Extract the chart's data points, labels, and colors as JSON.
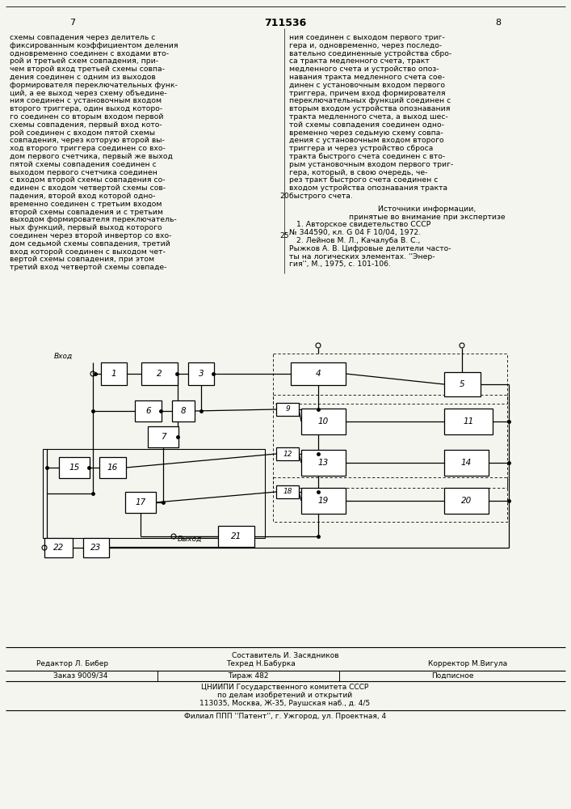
{
  "title_number": "711536",
  "page_left": "7",
  "page_right": "8",
  "background_color": "#f5f5f0",
  "text_color": "#000000",
  "left_column_text": [
    "схемы совпадения через делитель с",
    "фиксированным коэффициентом деления",
    "одновременно соединен с входами вто-",
    "рой и третьей схем совпадения, при-",
    "чем второй вход третьей схемы совпа-",
    "дения соединен с одним из выходов",
    "формирователя переключательных функ-",
    "ций, а ее выход через схему объедине-",
    "ния соединен с установочным входом",
    "второго триггера, один выход которо-",
    "го соединен со вторым входом первой",
    "схемы совпадения, первый вход кото-",
    "рой соединен с входом пятой схемы",
    "совпадения, через которую второй вы-",
    "ход второго триггера соединен со вхо-",
    "дом первого счетчика, первый же выход",
    "пятой схемы совпадения соединен с",
    "выходом первого счетчика соединен",
    "с входом второй схемы совпадения со-",
    "единен с входом четвертой схемы сов-",
    "падения, второй вход которой одно-",
    "временно соединен с третьим входом",
    "второй схемы совпадения и с третьим",
    "выходом формирователя переключатель-",
    "ных функций, первый выход которого",
    "соединен через второй инвертор со вхо-",
    "дом седьмой схемы совпадения, третий",
    "вход которой соединен с выходом чет-",
    "вертой схемы совпадения, при этом",
    "третий вход четвертой схемы совпаде-"
  ],
  "right_column_text": [
    "ния соединен с выходом первого триг-",
    "гера и, одновременно, через последо-",
    "вательно соединенные устройства сбро-",
    "са тракта медленного счета, тракт",
    "медленного счета и устройство опоз-",
    "навания тракта медленного счета сое-",
    "динен с установочным входом первого",
    "триггера, причем вход формирователя",
    "переключательных функций соединен с",
    "вторым входом устройства опознавания",
    "тракта медленного счета, а выход шес-",
    "той схемы совпадения соединен одно-",
    "временно через седьмую схему совпа-",
    "дения с установочным входом второго",
    "триггера и через устройство сброса",
    "тракта быстрого счета соединен с вто-",
    "рым установочным входом первого триг-",
    "гера, который, в свою очередь, че-",
    "рез тракт быстрого счета соединен с",
    "входом устройства опознавания тракта",
    "быстрого счета."
  ],
  "line_num_20": "20",
  "line_num_25": "25",
  "sources_header": "Источники информации,",
  "sources_subheader": "принятые во внимание при экспертизе",
  "source1": "   1. Авторское свидетельство СССР",
  "source1b": "№ 344590, кл. G 04 F 10/04, 1972.",
  "source2": "   2. Лейнов М. Л., Качалуба В. С.,",
  "source2b": "Рыжков А. В. Цифровые делители часто-",
  "source2c": "ты на логических элементах. ''Энер-",
  "source2d": "гия'', М., 1975, с. 101-106.",
  "footer_compositor": "Составитель И. Засядников",
  "footer_editor": "Редактор Л. Бибер",
  "footer_techred": "Техред Н.Бабурка",
  "footer_corrector": "Корректор М.Вигула",
  "footer_order": "Заказ 9009/34",
  "footer_tirazh": "Тираж 482",
  "footer_podpisnoe": "Подписное",
  "footer_tsnipi": "ЦНИИПИ Государственного комитета СССР",
  "footer_tsnipi2": "по делам изобретений и открытий",
  "footer_address": "113035, Москва, Ж-35, Раушская наб., д. 4/5",
  "footer_filial": "Филиал ППП ''Патент'', г. Ужгород, ул. Проектная, 4"
}
